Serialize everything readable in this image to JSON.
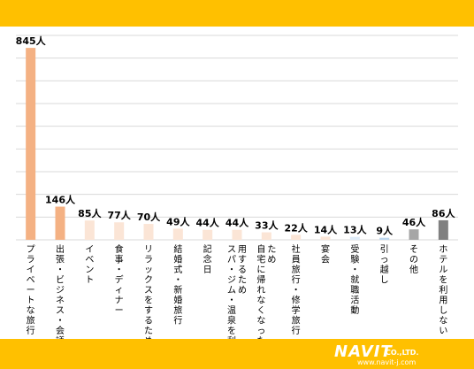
{
  "chart_data": {
    "type": "bar",
    "categories": [
      "プライベートな旅行",
      "出張・ビジネス・会議",
      "イベント",
      "食事・ディナー",
      "リラックスをするため",
      "結婚式・新婚旅行",
      "記念日",
      "スパ・ジム・温泉を利用するため",
      "自宅に帰れなくなったため",
      "社員旅行・修学旅行",
      "宴会",
      "受験・就職活動",
      "引っ越し",
      "その他",
      "ホテルを利用しない"
    ],
    "values": [
      845,
      146,
      85,
      77,
      70,
      49,
      44,
      44,
      33,
      22,
      14,
      13,
      9,
      46,
      86
    ],
    "value_labels": [
      "845人",
      "146人",
      "85人",
      "77人",
      "70人",
      "49人",
      "44人",
      "44人",
      "33人",
      "22人",
      "14人",
      "13人",
      "9人",
      "46人",
      "86人"
    ],
    "bar_colors": [
      "#f4b183",
      "#f4b183",
      "#fbe5d6",
      "#fbe5d6",
      "#fbe5d6",
      "#fbe5d6",
      "#fbe5d6",
      "#fbe5d6",
      "#fbe5d6",
      "#fbe5d6",
      "#fbe5d6",
      "#deebf7",
      "#bdd7ee",
      "#a6a6a6",
      "#808080"
    ],
    "ylim": [
      0,
      900
    ],
    "grid": true,
    "grid_step": 100
  },
  "brand": {
    "name": "NAVIT",
    "suffix": "CO.,LTD.",
    "url": "www.navit-j.com",
    "band_color": "#ffc000"
  }
}
